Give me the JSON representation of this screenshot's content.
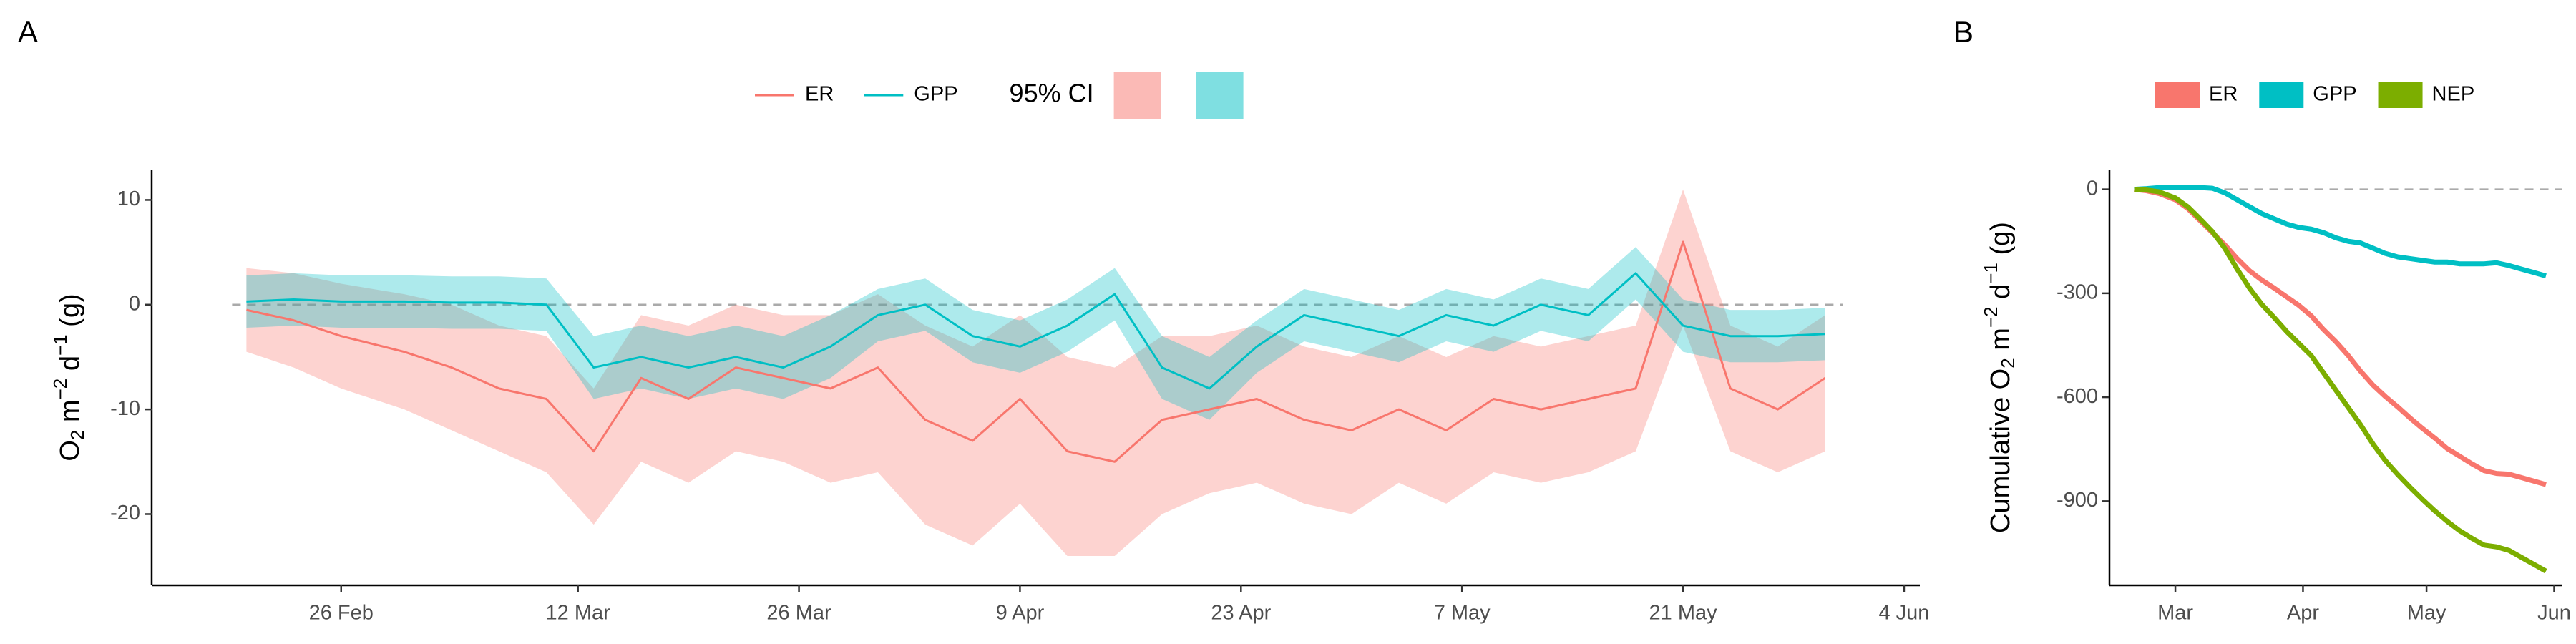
{
  "chart_data": [
    {
      "type": "line_ribbon",
      "panel": "A",
      "x": [
        "20 Feb",
        "23 Feb",
        "26 Feb",
        "1 Mar",
        "4 Mar",
        "7 Mar",
        "10 Mar",
        "13 Mar",
        "16 Mar",
        "19 Mar",
        "22 Mar",
        "25 Mar",
        "28 Mar",
        "31 Mar",
        "3 Apr",
        "6 Apr",
        "9 Apr",
        "12 Apr",
        "15 Apr",
        "18 Apr",
        "21 Apr",
        "24 Apr",
        "27 Apr",
        "30 Apr",
        "3 May",
        "6 May",
        "9 May",
        "12 May",
        "15 May",
        "18 May",
        "21 May",
        "24 May",
        "27 May",
        "30 May"
      ],
      "series": [
        {
          "name": "ER",
          "color": "#F8766D",
          "ci_color": "#F8766D",
          "values": [
            -0.5,
            -1.5,
            -3,
            -4.5,
            -6,
            -8,
            -9,
            -14,
            -7,
            -9,
            -6,
            -7,
            -8,
            -6,
            -11,
            -13,
            -9,
            -14,
            -15,
            -11,
            -10,
            -9,
            -11,
            -12,
            -10,
            -12,
            -9,
            -10,
            -9,
            -8,
            6,
            -8,
            -10,
            -7
          ],
          "ci_low": [
            -4.5,
            -6,
            -8,
            -10,
            -12,
            -14,
            -16,
            -21,
            -15,
            -17,
            -14,
            -15,
            -17,
            -16,
            -21,
            -23,
            -19,
            -24,
            -24,
            -20,
            -18,
            -17,
            -19,
            -20,
            -17,
            -19,
            -16,
            -17,
            -16,
            -14,
            -2,
            -14,
            -16,
            -14
          ],
          "ci_high": [
            3.5,
            3,
            2,
            1,
            0,
            -2,
            -3,
            -8,
            -1,
            -2,
            0,
            -1,
            -1,
            1,
            -2,
            -4,
            -1,
            -5,
            -6,
            -3,
            -3,
            -2,
            -4,
            -5,
            -3,
            -5,
            -3,
            -4,
            -3,
            -2,
            11,
            -2,
            -4,
            -1
          ]
        },
        {
          "name": "GPP",
          "color": "#00BFC4",
          "ci_color": "#00BFC4",
          "values": [
            0.3,
            0.5,
            0.3,
            0.3,
            0.2,
            0.2,
            0,
            -6,
            -5,
            -6,
            -5,
            -6,
            -4,
            -1,
            0,
            -3,
            -4,
            -2,
            1,
            -6,
            -8,
            -4,
            -1,
            -2,
            -3,
            -1,
            -2,
            0,
            -1,
            3,
            -2,
            -3,
            -3,
            -2.8
          ],
          "ci_low": [
            -2.2,
            -2,
            -2.2,
            -2.2,
            -2.3,
            -2.3,
            -2.5,
            -9,
            -8,
            -9,
            -8,
            -9,
            -7,
            -3.5,
            -2.5,
            -5.5,
            -6.5,
            -4.5,
            -1.5,
            -9,
            -11,
            -6.5,
            -3.5,
            -4.5,
            -5.5,
            -3.5,
            -4.5,
            -2.5,
            -3.5,
            0.5,
            -4.5,
            -5.5,
            -5.5,
            -5.3
          ],
          "ci_high": [
            2.8,
            3,
            2.8,
            2.8,
            2.7,
            2.7,
            2.5,
            -3,
            -2,
            -3,
            -2,
            -3,
            -1,
            1.5,
            2.5,
            -0.5,
            -1.5,
            0.5,
            3.5,
            -3,
            -5,
            -1.5,
            1.5,
            0.5,
            -0.5,
            1.5,
            0.5,
            2.5,
            1.5,
            5.5,
            0.5,
            -0.5,
            -0.5,
            -0.3
          ]
        }
      ],
      "ci_label": "95% CI",
      "y_label": [
        "O",
        "2",
        " m",
        "−2",
        " d",
        "−1",
        " (g)"
      ],
      "xlim": [
        "14 Feb",
        "5 Jun"
      ],
      "xticks": [
        "26 Feb",
        "12 Mar",
        "26 Mar",
        "9 Apr",
        "23 Apr",
        "7 May",
        "21 May",
        "4 Jun"
      ],
      "ylim": [
        -26.8,
        12.9
      ],
      "yticks": [
        -20,
        -10,
        0,
        10
      ],
      "ref_line": 0
    },
    {
      "type": "line",
      "panel": "B",
      "x": [
        "20 Feb",
        "23 Feb",
        "26 Feb",
        "1 Mar",
        "4 Mar",
        "7 Mar",
        "10 Mar",
        "13 Mar",
        "16 Mar",
        "19 Mar",
        "22 Mar",
        "25 Mar",
        "28 Mar",
        "31 Mar",
        "3 Apr",
        "6 Apr",
        "9 Apr",
        "12 Apr",
        "15 Apr",
        "18 Apr",
        "21 Apr",
        "24 Apr",
        "27 Apr",
        "30 Apr",
        "3 May",
        "6 May",
        "9 May",
        "12 May",
        "15 May",
        "18 May",
        "21 May",
        "24 May",
        "27 May",
        "30 May"
      ],
      "series": [
        {
          "name": "ER",
          "color": "#F8766D",
          "values": [
            0,
            -4,
            -12,
            -30,
            -55,
            -90,
            -125,
            -160,
            -200,
            -235,
            -262,
            -285,
            -310,
            -335,
            -365,
            -405,
            -440,
            -480,
            -525,
            -565,
            -598,
            -628,
            -660,
            -690,
            -718,
            -748,
            -770,
            -792,
            -812,
            -820,
            -822,
            -832,
            -842,
            -852
          ]
        },
        {
          "name": "GPP",
          "color": "#00BFC4",
          "values": [
            0,
            2,
            5,
            5,
            5,
            5,
            3,
            -10,
            -30,
            -50,
            -70,
            -85,
            -100,
            -110,
            -115,
            -125,
            -140,
            -150,
            -155,
            -170,
            -185,
            -195,
            -200,
            -205,
            -210,
            -210,
            -215,
            -215,
            -215,
            -212,
            -220,
            -230,
            -240,
            -250
          ]
        },
        {
          "name": "NEP",
          "color": "#7CAE00",
          "values": [
            0,
            -2,
            -7,
            -25,
            -50,
            -85,
            -122,
            -170,
            -230,
            -285,
            -332,
            -370,
            -410,
            -445,
            -480,
            -530,
            -580,
            -630,
            -680,
            -735,
            -783,
            -823,
            -860,
            -895,
            -928,
            -958,
            -985,
            -1007,
            -1027,
            -1032,
            -1042,
            -1062,
            -1082,
            -1102
          ]
        }
      ],
      "y_label": [
        "Cumulative O",
        "2",
        " m",
        "−2",
        " d",
        "−1",
        " (g)"
      ],
      "xlim": [
        "14 Feb",
        "3 Jun"
      ],
      "xticks": [
        {
          "value": "1 Mar",
          "label": "Mar"
        },
        {
          "value": "1 Apr",
          "label": "Apr"
        },
        {
          "value": "1 May",
          "label": "May"
        },
        {
          "value": "1 Jun",
          "label": "Jun"
        }
      ],
      "ylim": [
        -1143,
        57
      ],
      "yticks": [
        -900,
        -600,
        -300,
        0
      ],
      "ref_line": 0
    }
  ]
}
